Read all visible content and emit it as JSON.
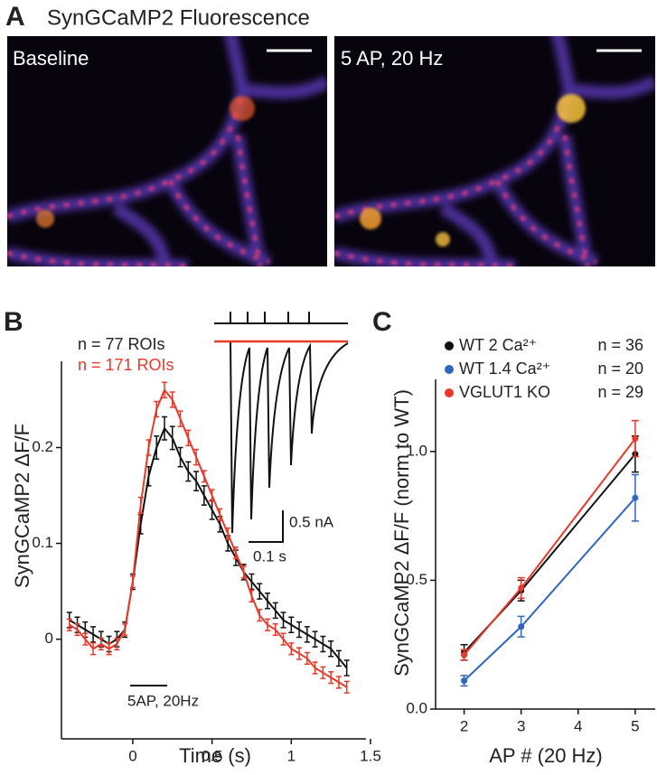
{
  "panel_a": {
    "label": "A",
    "title": "SynGCaMP2 Fluorescence",
    "images": [
      {
        "label": "Baseline"
      },
      {
        "label": "5 AP, 20 Hz"
      }
    ]
  },
  "chart_data": [
    {
      "type": "line",
      "panel_label": "B",
      "xlabel": "Time (s)",
      "ylabel": "SynGCaMP2 ΔF/F",
      "annotation": "5AP, 20Hz",
      "inset": {
        "current_scale": "0.5 nA",
        "time_scale": "0.1 s"
      },
      "xlim": [
        -0.45,
        1.5
      ],
      "ylim": [
        -0.104,
        0.29
      ],
      "xticks": [
        0,
        0.5,
        1,
        1.5
      ],
      "yticks": [
        0,
        0.1,
        0.2
      ],
      "x": [
        -0.4,
        -0.35,
        -0.3,
        -0.25,
        -0.2,
        -0.15,
        -0.1,
        -0.05,
        0,
        0.05,
        0.1,
        0.15,
        0.2,
        0.25,
        0.3,
        0.35,
        0.4,
        0.45,
        0.5,
        0.55,
        0.6,
        0.65,
        0.7,
        0.75,
        0.8,
        0.85,
        0.9,
        0.95,
        1.0,
        1.05,
        1.1,
        1.15,
        1.2,
        1.25,
        1.3,
        1.35
      ],
      "series": [
        {
          "label": "n = 77 ROIs",
          "color": "#111111",
          "values": [
            0.02,
            0.015,
            0.01,
            0.005,
            0.0,
            -0.005,
            0.0,
            0.01,
            0.06,
            0.12,
            0.17,
            0.2,
            0.22,
            0.21,
            0.19,
            0.175,
            0.165,
            0.15,
            0.135,
            0.12,
            0.1,
            0.085,
            0.07,
            0.06,
            0.05,
            0.04,
            0.03,
            0.02,
            0.015,
            0.01,
            0.005,
            0.0,
            -0.005,
            -0.01,
            -0.02,
            -0.03
          ],
          "errors": [
            0.008,
            0.008,
            0.008,
            0.008,
            0.008,
            0.008,
            0.008,
            0.008,
            0.008,
            0.01,
            0.01,
            0.012,
            0.012,
            0.012,
            0.01,
            0.01,
            0.01,
            0.01,
            0.01,
            0.008,
            0.008,
            0.008,
            0.008,
            0.008,
            0.008,
            0.008,
            0.008,
            0.008,
            0.008,
            0.008,
            0.008,
            0.008,
            0.008,
            0.008,
            0.008,
            0.008
          ]
        },
        {
          "label": "n = 171 ROIs",
          "color": "#e8392a",
          "values": [
            0.015,
            0.01,
            0.0,
            -0.01,
            -0.005,
            -0.01,
            -0.005,
            0.01,
            0.06,
            0.14,
            0.2,
            0.24,
            0.26,
            0.25,
            0.23,
            0.21,
            0.19,
            0.17,
            0.15,
            0.13,
            0.11,
            0.09,
            0.07,
            0.045,
            0.025,
            0.015,
            0.01,
            0.0,
            -0.01,
            -0.015,
            -0.02,
            -0.03,
            -0.035,
            -0.04,
            -0.045,
            -0.05
          ],
          "errors": [
            0.006,
            0.006,
            0.006,
            0.006,
            0.006,
            0.006,
            0.006,
            0.006,
            0.006,
            0.008,
            0.008,
            0.008,
            0.008,
            0.008,
            0.008,
            0.008,
            0.008,
            0.006,
            0.006,
            0.006,
            0.006,
            0.006,
            0.006,
            0.006,
            0.006,
            0.006,
            0.006,
            0.006,
            0.006,
            0.006,
            0.006,
            0.006,
            0.006,
            0.006,
            0.006,
            0.006
          ]
        }
      ]
    },
    {
      "type": "line",
      "panel_label": "C",
      "xlabel": "AP # (20 Hz)",
      "ylabel": "SynGCaMP2 ΔF/F (norm to WT)",
      "xlim": [
        1.5,
        5.35
      ],
      "ylim": [
        0,
        1.28
      ],
      "xticks": [
        2,
        3,
        4,
        5
      ],
      "yticks": [
        {
          "value": 0,
          "label": "0.0"
        },
        0.5,
        {
          "value": 1,
          "label": "1.0"
        }
      ],
      "x": [
        2,
        3,
        5
      ],
      "series": [
        {
          "name": "WT 2 Ca²⁺",
          "n_label": "n = 36",
          "color": "#111111",
          "values": [
            0.22,
            0.46,
            0.99
          ],
          "errors": [
            0.03,
            0.04,
            0.07
          ]
        },
        {
          "name": "WT 1.4 Ca²⁺",
          "n_label": "n = 20",
          "color": "#2f66c0",
          "values": [
            0.11,
            0.32,
            0.82
          ],
          "errors": [
            0.02,
            0.04,
            0.09
          ]
        },
        {
          "name": "VGLUT1 KO",
          "n_label": "n = 29",
          "color": "#e8392a",
          "values": [
            0.21,
            0.47,
            1.05
          ],
          "errors": [
            0.02,
            0.04,
            0.07
          ]
        }
      ]
    }
  ]
}
